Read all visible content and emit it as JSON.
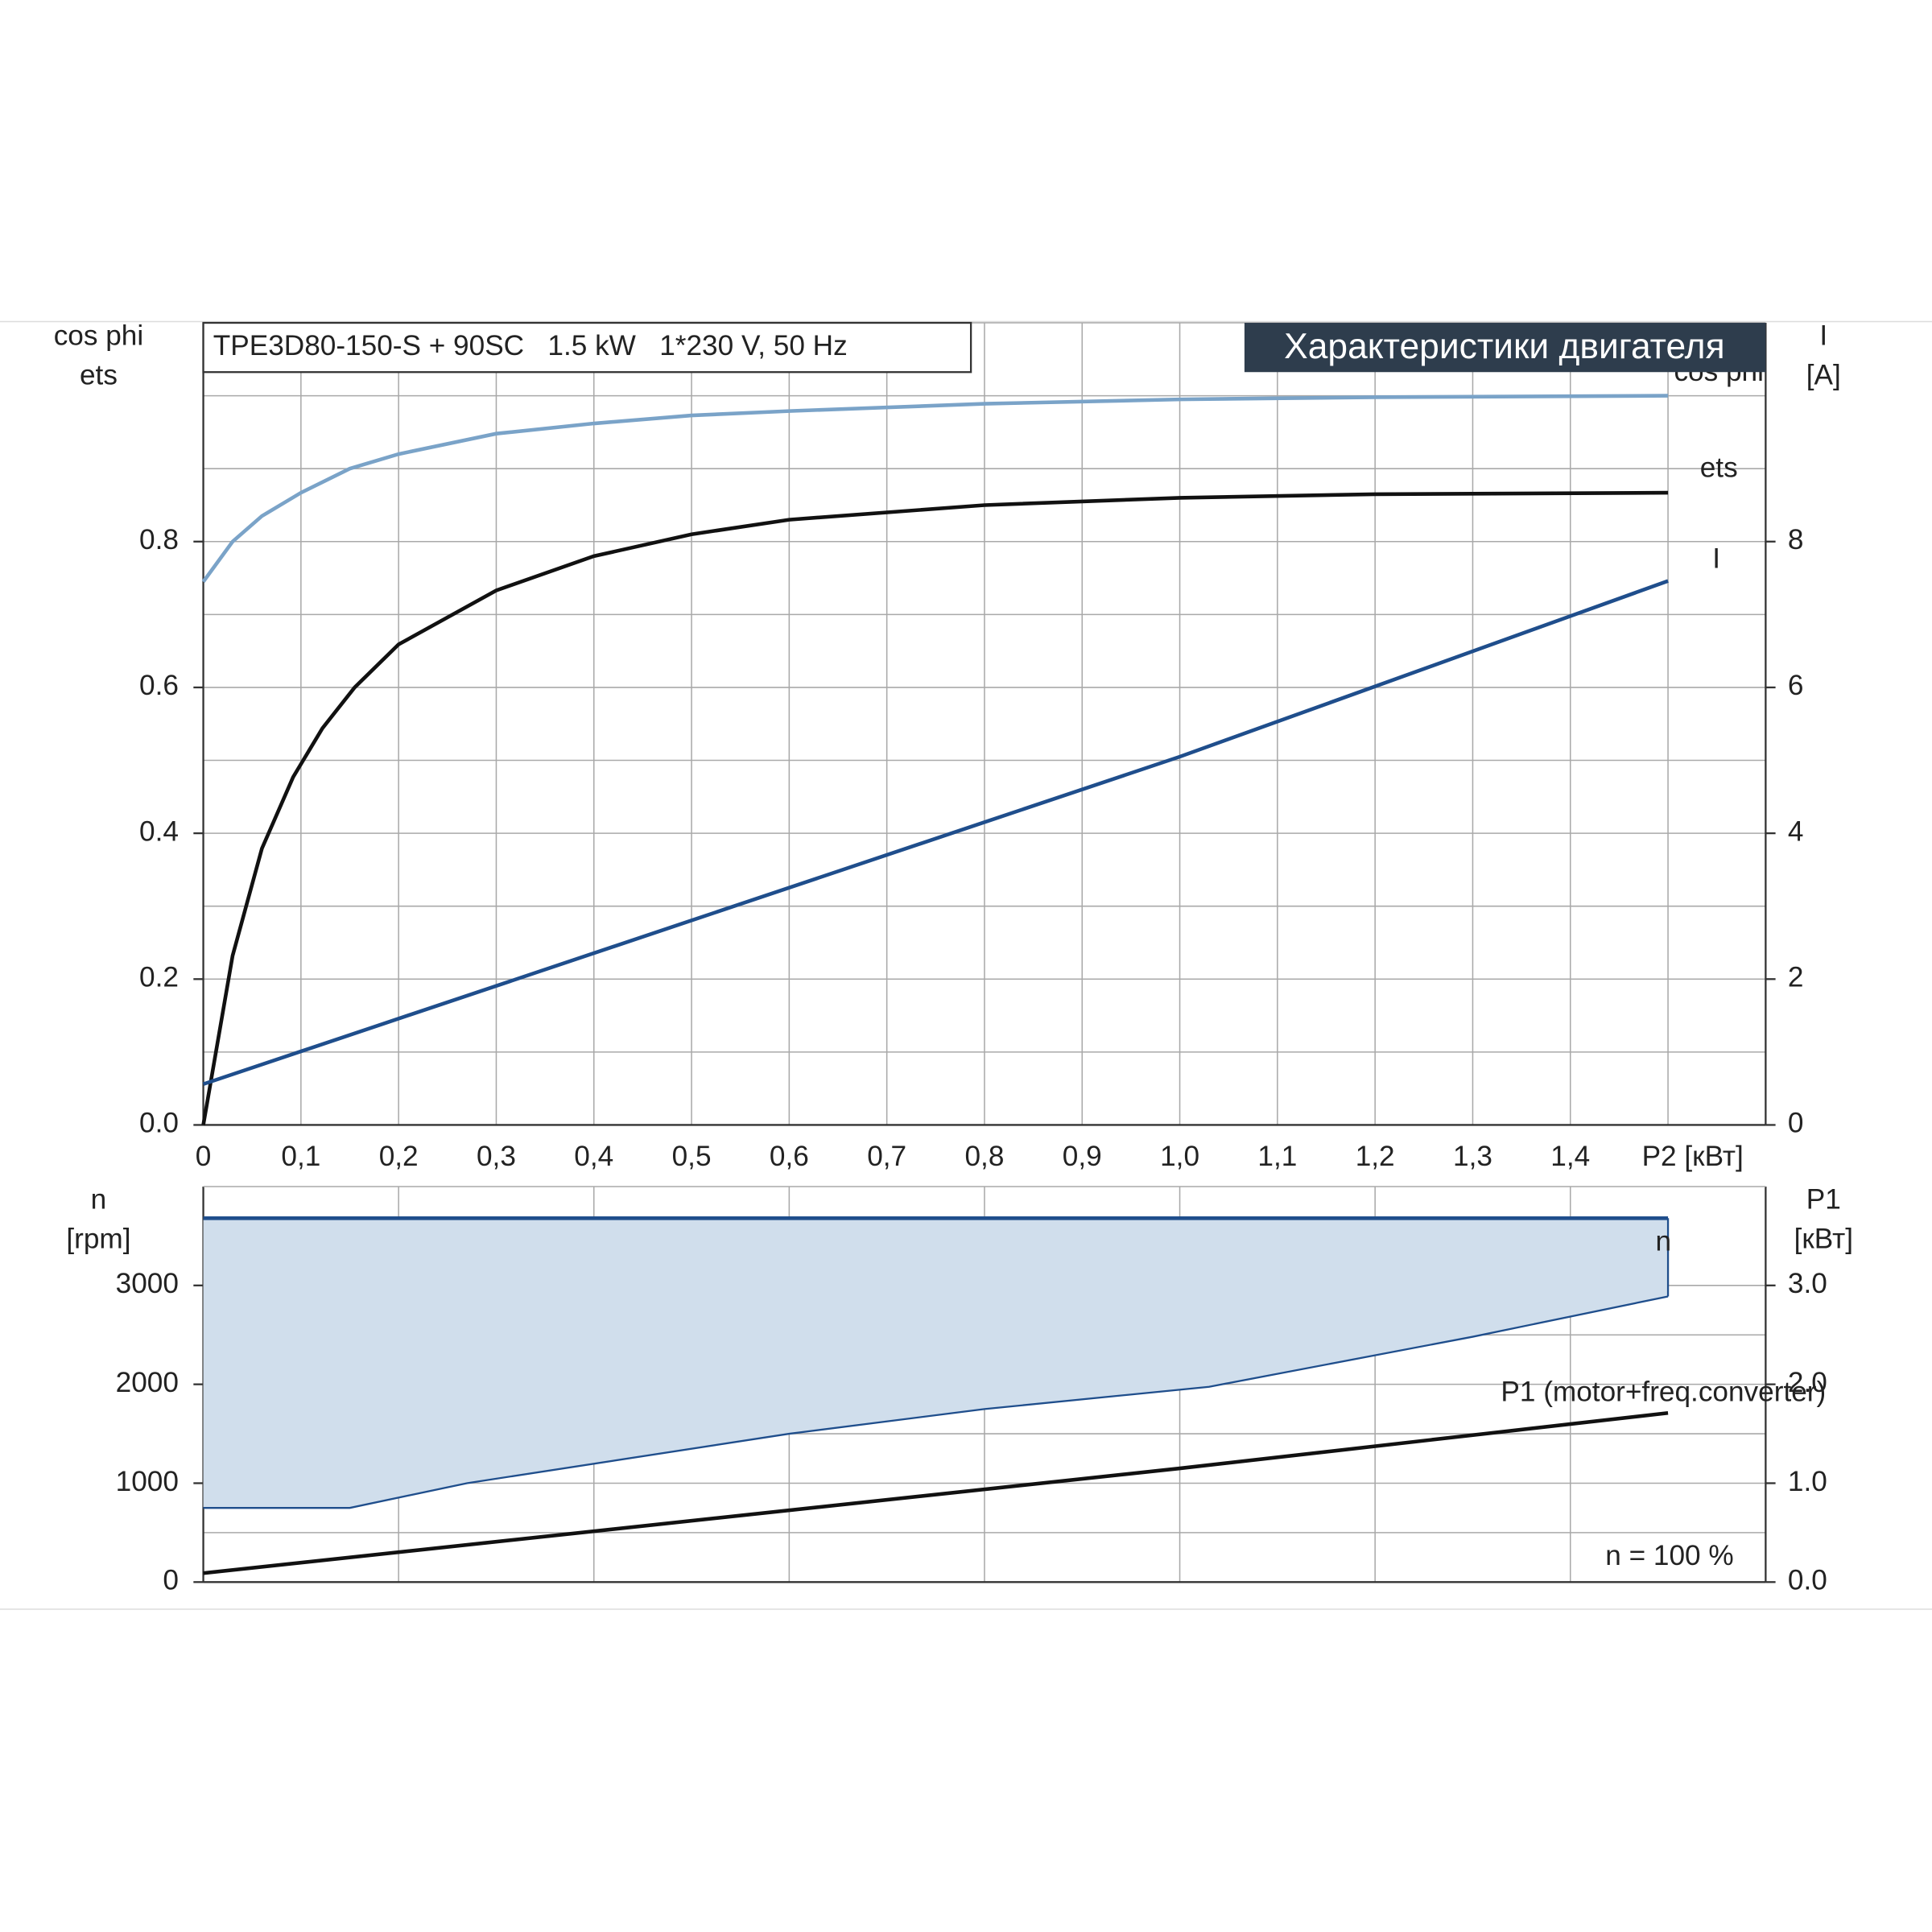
{
  "chart_data": [
    {
      "type": "line",
      "title": "TPE3D80-150-S + 90SC   1.5 kW   1*230 V, 50 Hz",
      "header": "Характеристики двигателя",
      "ylabel_lines": [
        "cos phi",
        "ets"
      ],
      "y2label_lines": [
        "I",
        "[A]"
      ],
      "xlim": [
        0,
        1.6
      ],
      "xticks": [
        0,
        {
          "value": 0.1,
          "label": "0,1"
        },
        {
          "value": 0.2,
          "label": "0,2"
        },
        {
          "value": 0.3,
          "label": "0,3"
        },
        {
          "value": 0.4,
          "label": "0,4"
        },
        {
          "value": 0.5,
          "label": "0,5"
        },
        {
          "value": 0.6,
          "label": "0,6"
        },
        {
          "value": 0.7,
          "label": "0,7"
        },
        {
          "value": 0.8,
          "label": "0,8"
        },
        {
          "value": 0.9,
          "label": "0,9"
        },
        {
          "value": 1.0,
          "label": "1,0"
        },
        {
          "value": 1.1,
          "label": "1,1"
        },
        {
          "value": 1.2,
          "label": "1,2"
        },
        {
          "value": 1.3,
          "label": "1,3"
        },
        {
          "value": 1.4,
          "label": "1,4"
        },
        {
          "value": 1.5,
          "label": "P2 [кВт]"
        }
      ],
      "ylim": [
        0,
        1.1
      ],
      "yticks": [
        {
          "value": 0,
          "label": "0.0"
        },
        0.2,
        0.4,
        0.6,
        0.8
      ],
      "yminor": [
        0.1,
        0.3,
        0.5,
        0.7,
        0.9,
        1.0
      ],
      "y2lim": [
        0,
        11
      ],
      "y2ticks": [
        0,
        2,
        4,
        6,
        8
      ],
      "grid": true,
      "series": [
        {
          "name": "cos phi",
          "color": "#7aa3c8",
          "x": [
            0,
            0.03,
            0.06,
            0.1,
            0.15,
            0.2,
            0.3,
            0.4,
            0.5,
            0.6,
            0.8,
            1.0,
            1.2,
            1.5
          ],
          "values": [
            0.745,
            0.8,
            0.835,
            0.867,
            0.9,
            0.92,
            0.948,
            0.962,
            0.973,
            0.979,
            0.989,
            0.995,
            0.998,
            1.0
          ]
        },
        {
          "name": "ets",
          "color": "#111111",
          "x": [
            0,
            0.03,
            0.06,
            0.092,
            0.122,
            0.155,
            0.2,
            0.3,
            0.4,
            0.5,
            0.6,
            0.8,
            1.0,
            1.2,
            1.5
          ],
          "values": [
            0,
            0.232,
            0.379,
            0.477,
            0.544,
            0.6,
            0.659,
            0.733,
            0.78,
            0.81,
            0.83,
            0.85,
            0.86,
            0.865,
            0.867
          ]
        },
        {
          "name": "I",
          "color": "#1f4e8c",
          "axis": "y2",
          "x": [
            0,
            1.0,
            1.5
          ],
          "values": [
            0.56,
            5.05,
            7.46
          ]
        }
      ]
    },
    {
      "type": "area",
      "ylabel_lines": [
        "n",
        "[rpm]"
      ],
      "y2label_lines": [
        "P1",
        "[кВт]"
      ],
      "annotation": "n = 100 %",
      "xlim": [
        0,
        1.6
      ],
      "xgrid": [
        0,
        0.2,
        0.4,
        0.6,
        0.8,
        1.0,
        1.2,
        1.4,
        1.6
      ],
      "ylim": [
        0,
        4000
      ],
      "yticks": [
        0,
        1000,
        2000,
        3000
      ],
      "yminor": [
        500,
        1500,
        2500
      ],
      "y2lim": [
        0,
        4
      ],
      "y2ticks": [
        {
          "value": 0,
          "label": "0.0"
        },
        {
          "value": 1,
          "label": "1.0"
        },
        {
          "value": 2,
          "label": "2.0"
        },
        {
          "value": 3,
          "label": "3.0"
        }
      ],
      "grid": true,
      "series": [
        {
          "name": "n",
          "color": "#1f4e8c",
          "fill": "#d0deec",
          "x": [
            0,
            0.15,
            0.27,
            0.6,
            0.8,
            1.03,
            1.3,
            1.5
          ],
          "values": [
            3680,
            3680,
            3680,
            3680,
            3680,
            3680,
            3680,
            3680
          ],
          "lower": [
            750,
            750,
            1000,
            1500,
            1750,
            1975,
            2481,
            2889
          ]
        },
        {
          "name": "P1 (motor+freq.converter)",
          "color": "#111111",
          "axis": "y2",
          "x": [
            0,
            1.0,
            1.5
          ],
          "values": [
            0.09,
            1.15,
            1.71
          ]
        }
      ]
    }
  ]
}
